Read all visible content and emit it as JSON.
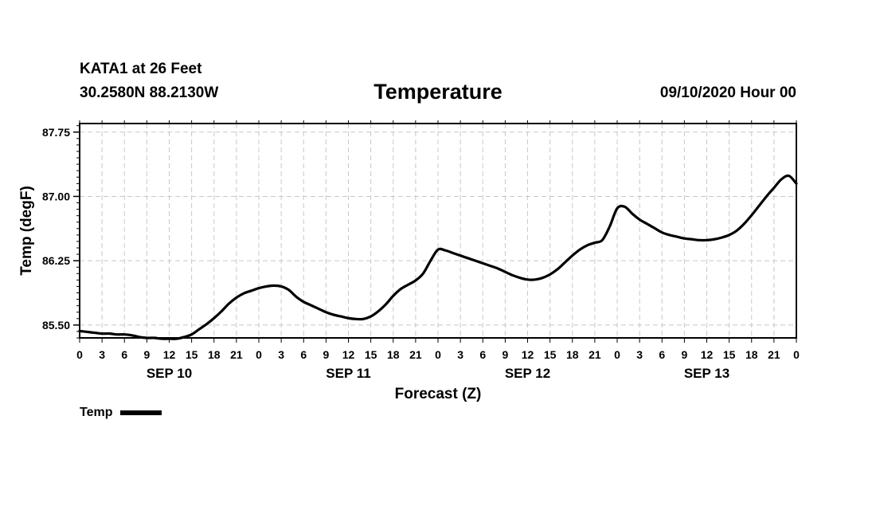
{
  "header": {
    "station": "KATA1 at 26 Feet",
    "coords": "30.2580N 88.2130W",
    "title": "Temperature",
    "run": "09/10/2020 Hour 00"
  },
  "chart_data": {
    "type": "line",
    "title": "Temperature",
    "xlabel": "Forecast (Z)",
    "ylabel": "Temp (degF)",
    "xlim": [
      0,
      96
    ],
    "ylim": [
      85.35,
      87.85
    ],
    "y_ticks": [
      85.5,
      86.25,
      87.0,
      87.75
    ],
    "y_tick_labels": [
      "85.50",
      "86.25",
      "87.00",
      "87.75"
    ],
    "x_tick_labels": [
      "0",
      "3",
      "6",
      "9",
      "12",
      "15",
      "18",
      "21",
      "0",
      "3",
      "6",
      "9",
      "12",
      "15",
      "18",
      "21",
      "0",
      "3",
      "6",
      "9",
      "12",
      "15",
      "18",
      "21",
      "0",
      "3",
      "6",
      "9",
      "12",
      "15",
      "18",
      "21",
      "0"
    ],
    "day_labels": [
      {
        "label": "SEP 10",
        "hour": 12
      },
      {
        "label": "SEP 11",
        "hour": 36
      },
      {
        "label": "SEP 12",
        "hour": 60
      },
      {
        "label": "SEP 13",
        "hour": 84
      }
    ],
    "grid": true,
    "series": [
      {
        "name": "Temp",
        "color": "#000000",
        "x": [
          0,
          1,
          2,
          3,
          4,
          5,
          6,
          7,
          8,
          9,
          10,
          11,
          12,
          13,
          14,
          15,
          16,
          17,
          18,
          19,
          20,
          21,
          22,
          23,
          24,
          25,
          26,
          27,
          28,
          29,
          30,
          31,
          32,
          33,
          34,
          35,
          36,
          37,
          38,
          39,
          40,
          41,
          42,
          43,
          44,
          45,
          46,
          47,
          48,
          49,
          50,
          51,
          52,
          53,
          54,
          55,
          56,
          57,
          58,
          59,
          60,
          61,
          62,
          63,
          64,
          65,
          66,
          67,
          68,
          69,
          70,
          71,
          72,
          73,
          74,
          75,
          76,
          77,
          78,
          79,
          80,
          81,
          82,
          83,
          84,
          85,
          86,
          87,
          88,
          89,
          90,
          91,
          92,
          93,
          94,
          95,
          96
        ],
        "values": [
          85.43,
          85.42,
          85.41,
          85.4,
          85.4,
          85.39,
          85.39,
          85.38,
          85.36,
          85.35,
          85.35,
          85.34,
          85.34,
          85.34,
          85.36,
          85.39,
          85.45,
          85.51,
          85.58,
          85.66,
          85.75,
          85.82,
          85.87,
          85.9,
          85.93,
          85.95,
          85.96,
          85.95,
          85.91,
          85.83,
          85.77,
          85.73,
          85.69,
          85.65,
          85.62,
          85.6,
          85.58,
          85.57,
          85.57,
          85.6,
          85.66,
          85.74,
          85.84,
          85.92,
          85.97,
          86.02,
          86.1,
          86.25,
          86.38,
          86.37,
          86.34,
          86.31,
          86.28,
          86.25,
          86.22,
          86.19,
          86.16,
          86.12,
          86.08,
          86.05,
          86.03,
          86.03,
          86.05,
          86.09,
          86.15,
          86.23,
          86.31,
          86.38,
          86.43,
          86.46,
          86.49,
          86.65,
          86.86,
          86.88,
          86.8,
          86.73,
          86.68,
          86.63,
          86.58,
          86.55,
          86.53,
          86.51,
          86.5,
          86.49,
          86.49,
          86.5,
          86.52,
          86.55,
          86.6,
          86.68,
          86.78,
          86.89,
          87.0,
          87.1,
          87.2,
          87.24,
          87.15
        ]
      }
    ],
    "legend": {
      "label": "Temp",
      "position": "bottom-left"
    }
  }
}
